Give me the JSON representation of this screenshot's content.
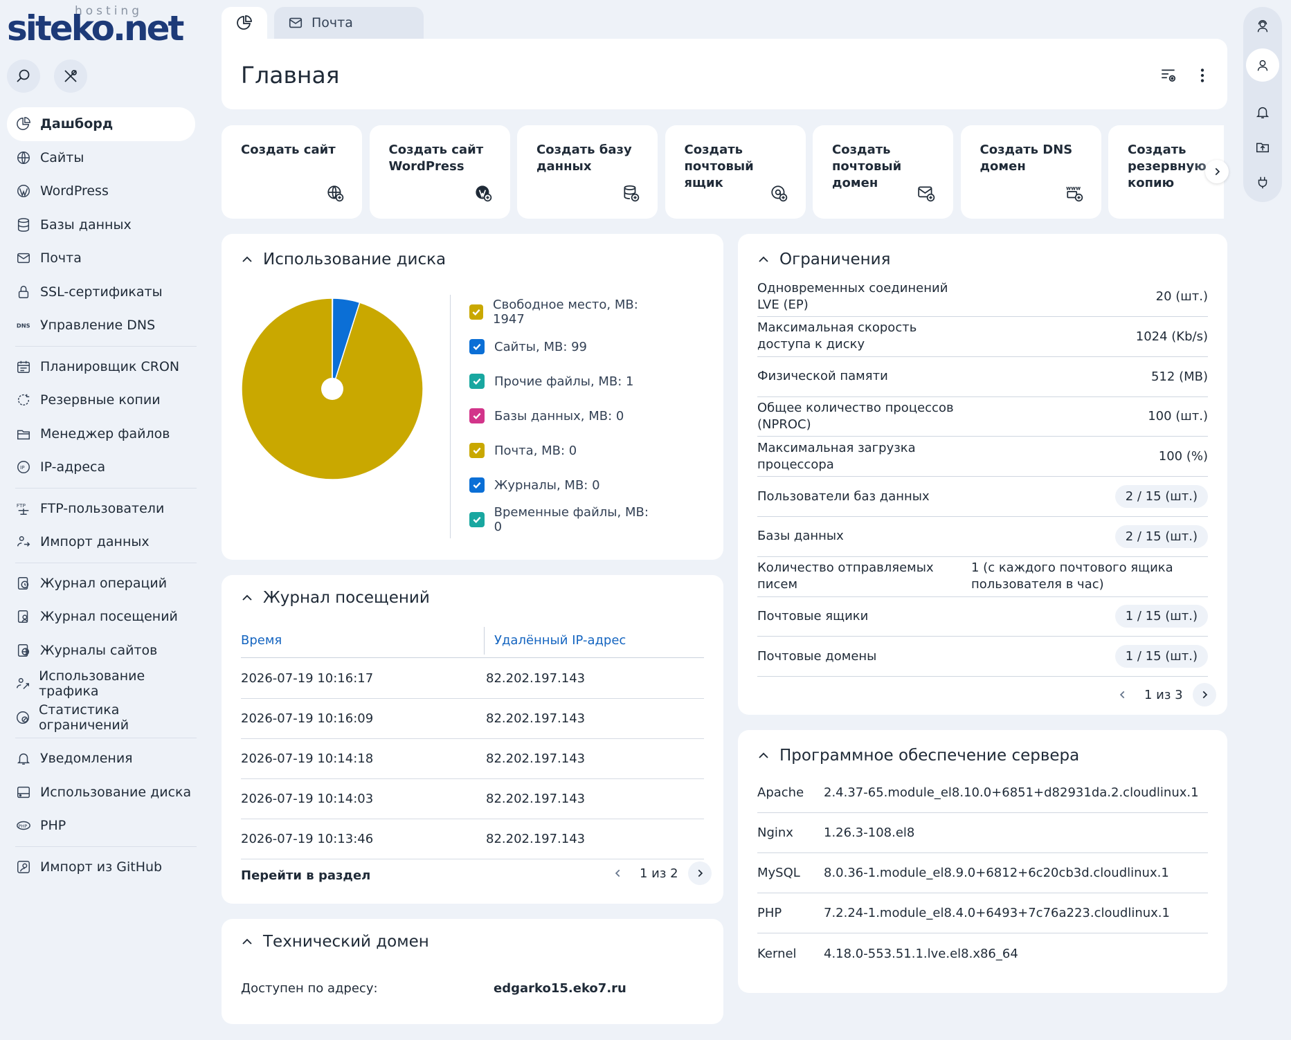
{
  "brand": {
    "logo_main": "siteko",
    "logo_dot": ".",
    "logo_net": "net",
    "logo_sub": "hosting"
  },
  "tabs": {
    "home_icon": "pie-chart-icon",
    "mail_label": "Почта"
  },
  "header": {
    "title": "Главная"
  },
  "sidebar": {
    "items": [
      {
        "label": "Дашборд",
        "icon": "pie-chart-icon"
      },
      {
        "label": "Сайты",
        "icon": "globe-icon"
      },
      {
        "label": "WordPress",
        "icon": "wordpress-icon"
      },
      {
        "label": "Базы данных",
        "icon": "database-icon"
      },
      {
        "label": "Почта",
        "icon": "mail-icon"
      },
      {
        "label": "SSL-сертификаты",
        "icon": "lock-icon"
      },
      {
        "label": "Управление DNS",
        "icon": "dns-icon"
      },
      {
        "label": "Планировщик CRON",
        "icon": "calendar-icon"
      },
      {
        "label": "Резервные копии",
        "icon": "backup-icon"
      },
      {
        "label": "Менеджер файлов",
        "icon": "folder-icon"
      },
      {
        "label": "IP-адреса",
        "icon": "ip-icon"
      },
      {
        "label": "FTP-пользователи",
        "icon": "ftp-icon"
      },
      {
        "label": "Импорт данных",
        "icon": "import-icon"
      },
      {
        "label": "Журнал операций",
        "icon": "history-icon"
      },
      {
        "label": "Журнал посещений",
        "icon": "visit-log-icon"
      },
      {
        "label": "Журналы сайтов",
        "icon": "site-logs-icon"
      },
      {
        "label": "Использование трафика",
        "icon": "traffic-icon"
      },
      {
        "label": "Статистика ограничений",
        "icon": "stats-icon"
      },
      {
        "label": "Уведомления",
        "icon": "bell-icon"
      },
      {
        "label": "Использование диска",
        "icon": "disk-icon"
      },
      {
        "label": "PHP",
        "icon": "php-icon"
      },
      {
        "label": "Импорт из GitHub",
        "icon": "github-icon"
      }
    ]
  },
  "quick_actions": [
    {
      "label": "Создать сайт",
      "icon": "globe-plus-icon"
    },
    {
      "label": "Создать сайт WordPress",
      "icon": "wordpress-plus-icon"
    },
    {
      "label": "Создать базу данных",
      "icon": "database-plus-icon"
    },
    {
      "label": "Создать почтовый ящик",
      "icon": "at-plus-icon"
    },
    {
      "label": "Создать почтовый домен",
      "icon": "mail-plus-icon"
    },
    {
      "label": "Создать DNS домен",
      "icon": "www-plus-icon"
    },
    {
      "label": "Создать резервную копию",
      "icon": "backup-plus-icon"
    }
  ],
  "disk": {
    "title": "Использование диска",
    "legend": [
      {
        "label": "Свободное место, MB: 1947",
        "color": "#c9a800"
      },
      {
        "label": "Сайты, MB: 99",
        "color": "#0b6fd6"
      },
      {
        "label": "Прочие файлы, MB: 1",
        "color": "#19a7a0"
      },
      {
        "label": "Базы данных, MB: 0",
        "color": "#d2348a"
      },
      {
        "label": "Почта, MB: 0",
        "color": "#c9a800"
      },
      {
        "label": "Журналы, MB: 0",
        "color": "#0b6fd6"
      },
      {
        "label": "Временные файлы, MB: 0",
        "color": "#19a7a0"
      }
    ]
  },
  "chart_data": {
    "type": "pie",
    "categories": [
      "Свободное место",
      "Сайты",
      "Прочие файлы",
      "Базы данных",
      "Почта",
      "Журналы",
      "Временные файлы"
    ],
    "values": [
      1947,
      99,
      1,
      0,
      0,
      0,
      0
    ],
    "colors": [
      "#c9a800",
      "#0b6fd6",
      "#19a7a0",
      "#d2348a",
      "#c9a800",
      "#0b6fd6",
      "#19a7a0"
    ]
  },
  "visits": {
    "title": "Журнал посещений",
    "col_time": "Время",
    "col_ip": "Удалённый IP-адрес",
    "rows": [
      {
        "time": "2026-07-19 10:16:17",
        "ip": "82.202.197.143"
      },
      {
        "time": "2026-07-19 10:16:09",
        "ip": "82.202.197.143"
      },
      {
        "time": "2026-07-19 10:14:18",
        "ip": "82.202.197.143"
      },
      {
        "time": "2026-07-19 10:14:03",
        "ip": "82.202.197.143"
      },
      {
        "time": "2026-07-19 10:13:46",
        "ip": "82.202.197.143"
      }
    ],
    "goto": "Перейти в раздел",
    "page": "1 из 2"
  },
  "tech": {
    "title": "Технический домен",
    "label": "Доступен по адресу:",
    "value": "edgarko15.eko7.ru"
  },
  "limits": {
    "title": "Ограничения",
    "rows": [
      {
        "label": "Одновременных соединений LVE (EP)",
        "value": "20 (шт.)"
      },
      {
        "label": "Максимальная скорость доступа к диску",
        "value": "1024 (Kb/s)"
      },
      {
        "label": "Физической памяти",
        "value": "512 (MB)"
      },
      {
        "label": "Общее количество процессов (NPROC)",
        "value": "100 (шт.)"
      },
      {
        "label": "Максимальная загрузка процессора",
        "value": "100 (%)"
      },
      {
        "label": "Пользователи баз данных",
        "value": "2 / 15 (шт.)"
      },
      {
        "label": "Базы данных",
        "value": "2 / 15 (шт.)"
      },
      {
        "label": "Количество отправляемых писем",
        "value": "1 (с каждого почтового ящика пользователя в час)"
      },
      {
        "label": "Почтовые ящики",
        "value": "1 / 15 (шт.)"
      },
      {
        "label": "Почтовые домены",
        "value": "1 / 15 (шт.)"
      }
    ],
    "page": "1 из 3"
  },
  "software": {
    "title": "Программное обеспечение сервера",
    "rows": [
      {
        "name": "Apache",
        "version": "2.4.37-65.module_el8.10.0+6851+d82931da.2.cloudlinux.1"
      },
      {
        "name": "Nginx",
        "version": "1.26.3-108.el8"
      },
      {
        "name": "MySQL",
        "version": "8.0.36-1.module_el8.9.0+6812+6c20cb3d.cloudlinux.1"
      },
      {
        "name": "PHP",
        "version": "7.2.24-1.module_el8.4.0+6493+7c76a223.cloudlinux.1"
      },
      {
        "name": "Kernel",
        "version": "4.18.0-553.51.1.lve.el8.x86_64"
      }
    ]
  }
}
